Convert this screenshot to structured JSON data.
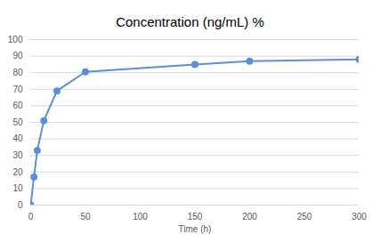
{
  "chart_data": {
    "type": "line",
    "title": "Concentration (ng/mL) %",
    "xlabel": "Time (h)",
    "x": [
      0,
      3,
      6,
      12,
      24,
      50,
      150,
      200,
      300
    ],
    "values": [
      0,
      17,
      33,
      51,
      69,
      80.5,
      85,
      87,
      88
    ],
    "color": "#5b8fd6",
    "marker": "circle",
    "xlim": [
      0,
      300
    ],
    "xticks": [
      0,
      50,
      100,
      150,
      200,
      250,
      300
    ],
    "ylim": [
      0,
      100
    ],
    "yticks": [
      0,
      10,
      20,
      30,
      40,
      50,
      60,
      70,
      80,
      90,
      100
    ],
    "grid": true
  }
}
